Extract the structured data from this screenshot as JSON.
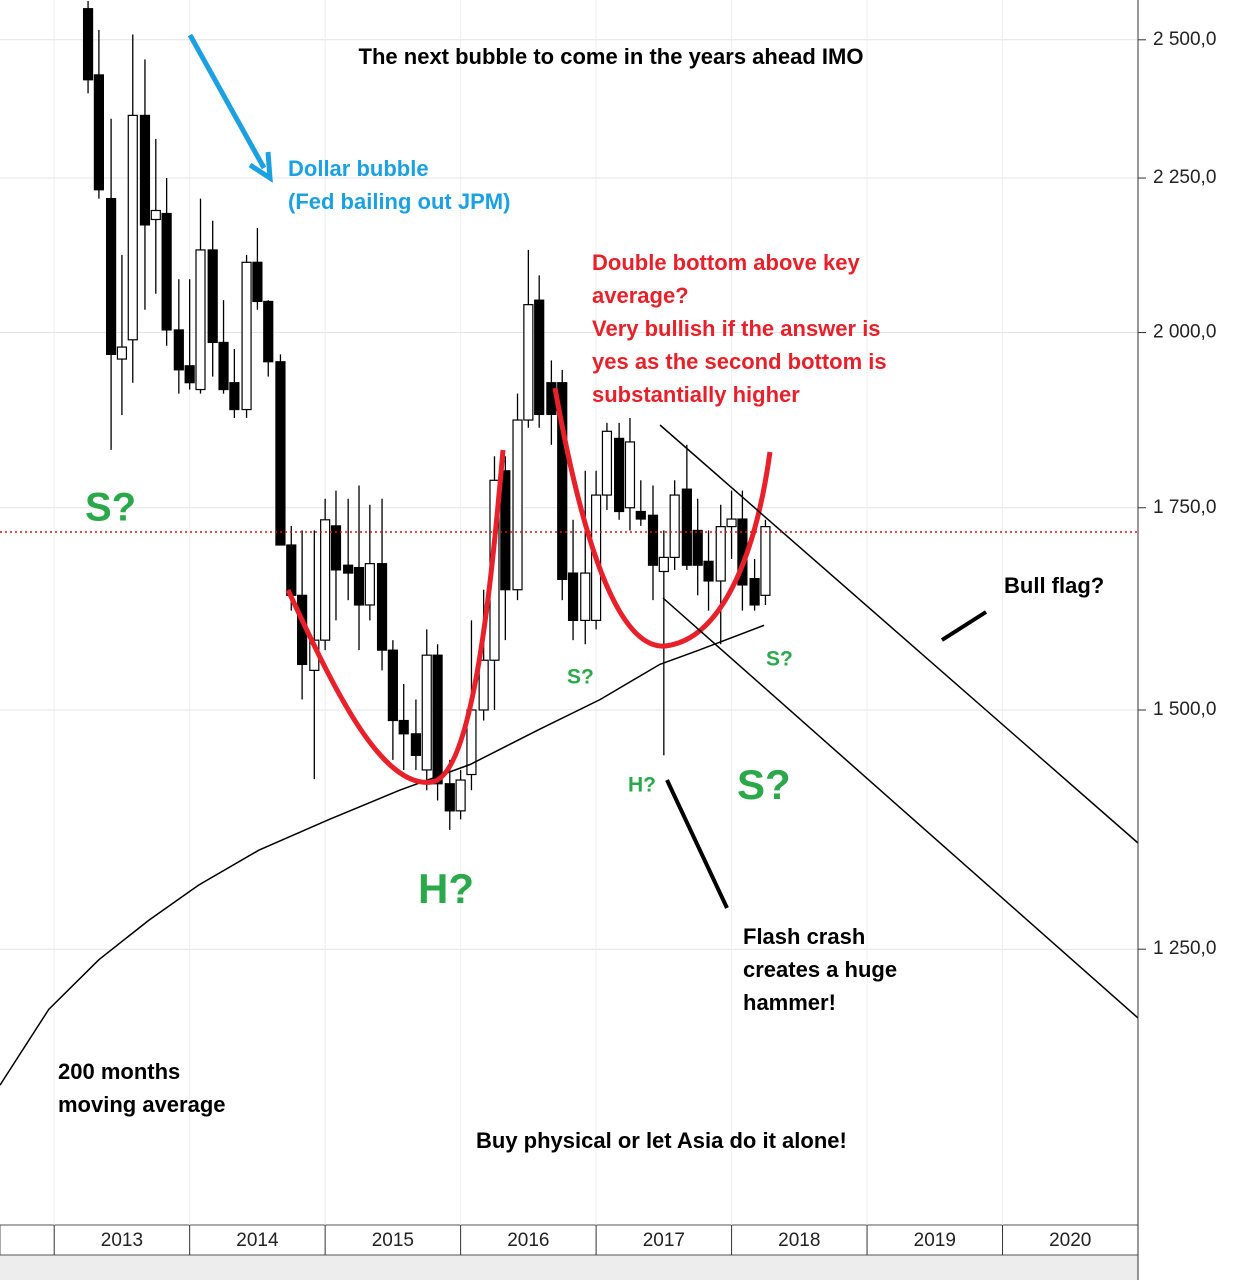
{
  "chart_data": {
    "type": "candlestick",
    "title": "The next bubble to come in the years ahead IMO",
    "log_scale": true,
    "grid": true,
    "xlim": [
      2012.6,
      2021
    ],
    "ylim": [
      1013,
      2577
    ],
    "xticks": [
      2013,
      2014,
      2015,
      2016,
      2017,
      2018,
      2019,
      2020
    ],
    "yticks": [
      {
        "value": 1250,
        "label": "1 250,0"
      },
      {
        "value": 1500,
        "label": "1 500,0"
      },
      {
        "value": 1750,
        "label": "1 750,0"
      },
      {
        "value": 2000,
        "label": "2 000,0"
      },
      {
        "value": 2250,
        "label": "2 250,0"
      },
      {
        "value": 2500,
        "label": "2 500,0"
      }
    ],
    "up_color": "#ffffff",
    "down_color": "#000000",
    "x": [
      2013.25,
      2013.33,
      2013.42,
      2013.5,
      2013.58,
      2013.67,
      2013.75,
      2013.83,
      2013.92,
      2014,
      2014.08,
      2014.17,
      2014.25,
      2014.33,
      2014.42,
      2014.5,
      2014.58,
      2014.67,
      2014.75,
      2014.83,
      2014.92,
      2015,
      2015.08,
      2015.17,
      2015.25,
      2015.33,
      2015.42,
      2015.5,
      2015.58,
      2015.67,
      2015.75,
      2015.83,
      2015.92,
      2016,
      2016.08,
      2016.17,
      2016.25,
      2016.33,
      2016.42,
      2016.5,
      2016.58,
      2016.67,
      2016.75,
      2016.83,
      2016.92,
      2017,
      2017.08,
      2017.17,
      2017.25,
      2017.33,
      2017.42,
      2017.5,
      2017.58,
      2017.67,
      2017.75,
      2017.83,
      2017.92,
      2018,
      2018.08,
      2018.17,
      2018.25
    ],
    "open": [
      2560,
      2434,
      2215,
      1960,
      1989,
      2360,
      2180,
      2190,
      2004,
      1950,
      1915,
      2130,
      1985,
      1925,
      1886,
      2110,
      2048,
      1956,
      1701,
      1637,
      1546,
      1582,
      1726,
      1675,
      1672,
      1625,
      1677,
      1570,
      1488,
      1473,
      1433,
      1564,
      1418,
      1389,
      1428,
      1500,
      1558,
      1800,
      1644,
      1871,
      2050,
      1925,
      1925,
      1665,
      1606,
      1606,
      1767,
      1845,
      1750,
      1745,
      1740,
      1667,
      1685,
      1775,
      1720,
      1680,
      1655,
      1725,
      1735,
      1658,
      1637
    ],
    "high": [
      2575,
      2519,
      2354,
      2122,
      2510,
      2463,
      2318,
      2250,
      2083,
      2083,
      2215,
      2178,
      2050,
      1975,
      2122,
      2166,
      2050,
      1967,
      1726,
      1720,
      1720,
      1762,
      1773,
      1762,
      1780,
      1754,
      1762,
      1582,
      1530,
      1512,
      1595,
      1577,
      1444,
      1433,
      1606,
      1644,
      1820,
      1820,
      1909,
      2130,
      2089,
      1958,
      1944,
      1734,
      1800,
      1800,
      1867,
      1867,
      1874,
      1787,
      1780,
      1720,
      1787,
      1836,
      1762,
      1720,
      1754,
      1773,
      1773,
      1683,
      1734
    ],
    "low": [
      2400,
      2215,
      1829,
      1878,
      1925,
      2035,
      2060,
      1980,
      1909,
      1915,
      1909,
      1934,
      1909,
      1874,
      1874,
      2035,
      1934,
      1701,
      1618,
      1512,
      1423,
      1570,
      1606,
      1631,
      1570,
      1606,
      1546,
      1444,
      1433,
      1433,
      1411,
      1400,
      1369,
      1380,
      1411,
      1488,
      1500,
      1582,
      1631,
      1860,
      1860,
      1836,
      1631,
      1582,
      1577,
      1595,
      1747,
      1734,
      1720,
      1726,
      1631,
      1449,
      1669,
      1669,
      1637,
      1618,
      1577,
      1683,
      1618,
      1618,
      1625
    ],
    "close": [
      2425,
      2230,
      1967,
      1978,
      2360,
      2171,
      2195,
      2004,
      1944,
      1925,
      2130,
      1985,
      1915,
      1886,
      2110,
      2048,
      1956,
      1701,
      1637,
      1553,
      1582,
      1734,
      1669,
      1665,
      1625,
      1677,
      1570,
      1488,
      1473,
      1449,
      1564,
      1418,
      1389,
      1422,
      1500,
      1558,
      1787,
      1644,
      1871,
      2043,
      1879,
      1879,
      1657,
      1606,
      1665,
      1767,
      1855,
      1745,
      1840,
      1735,
      1675,
      1685,
      1767,
      1675,
      1675,
      1655,
      1725,
      1735,
      1650,
      1625,
      1725
    ],
    "overlays": [
      {
        "color": "#000000",
        "x": [
          2012.6,
          2012.96,
          2013.33,
          2013.7,
          2014.07,
          2014.51,
          2015.03,
          2015.55,
          2016.07,
          2016.58,
          2017.03,
          2017.47,
          2017.76,
          2018.24
        ],
        "values": [
          1127,
          1194,
          1240,
          1278,
          1313,
          1348,
          1380,
          1411,
          1439,
          1478,
          1512,
          1553,
          1570,
          1600
        ]
      }
    ],
    "reference_line": {
      "value": 1718,
      "color": "#dd1111"
    },
    "annotations": [
      {
        "lines": [
          "Dollar bubble",
          "(Fed bailing out JPM)"
        ],
        "color": "#1ba1e2"
      },
      {
        "lines": [
          "Double bottom above key",
          "average?",
          "Very bullish if the answer is",
          "yes as the second bottom is",
          "substantially higher"
        ],
        "color": "#e8202a"
      },
      {
        "lines": [
          "S?"
        ],
        "color": "#2aa84a"
      },
      {
        "lines": [
          "S?"
        ],
        "color": "#2aa84a"
      },
      {
        "lines": [
          "S?"
        ],
        "color": "#2aa84a"
      },
      {
        "lines": [
          "S?"
        ],
        "color": "#2aa84a"
      },
      {
        "lines": [
          "H?"
        ],
        "color": "#2aa84a"
      },
      {
        "lines": [
          "H?"
        ],
        "color": "#2aa84a"
      },
      {
        "lines": [
          "Bull flag?"
        ],
        "color": "#000000"
      },
      {
        "lines": [
          "Flash crash",
          "creates a huge",
          "hammer!"
        ],
        "color": "#000000"
      },
      {
        "lines": [
          "200 months",
          "moving average"
        ],
        "color": "#000000"
      },
      {
        "lines": [
          "Buy physical or let Asia do it alone!"
        ],
        "color": "#000000"
      }
    ]
  }
}
